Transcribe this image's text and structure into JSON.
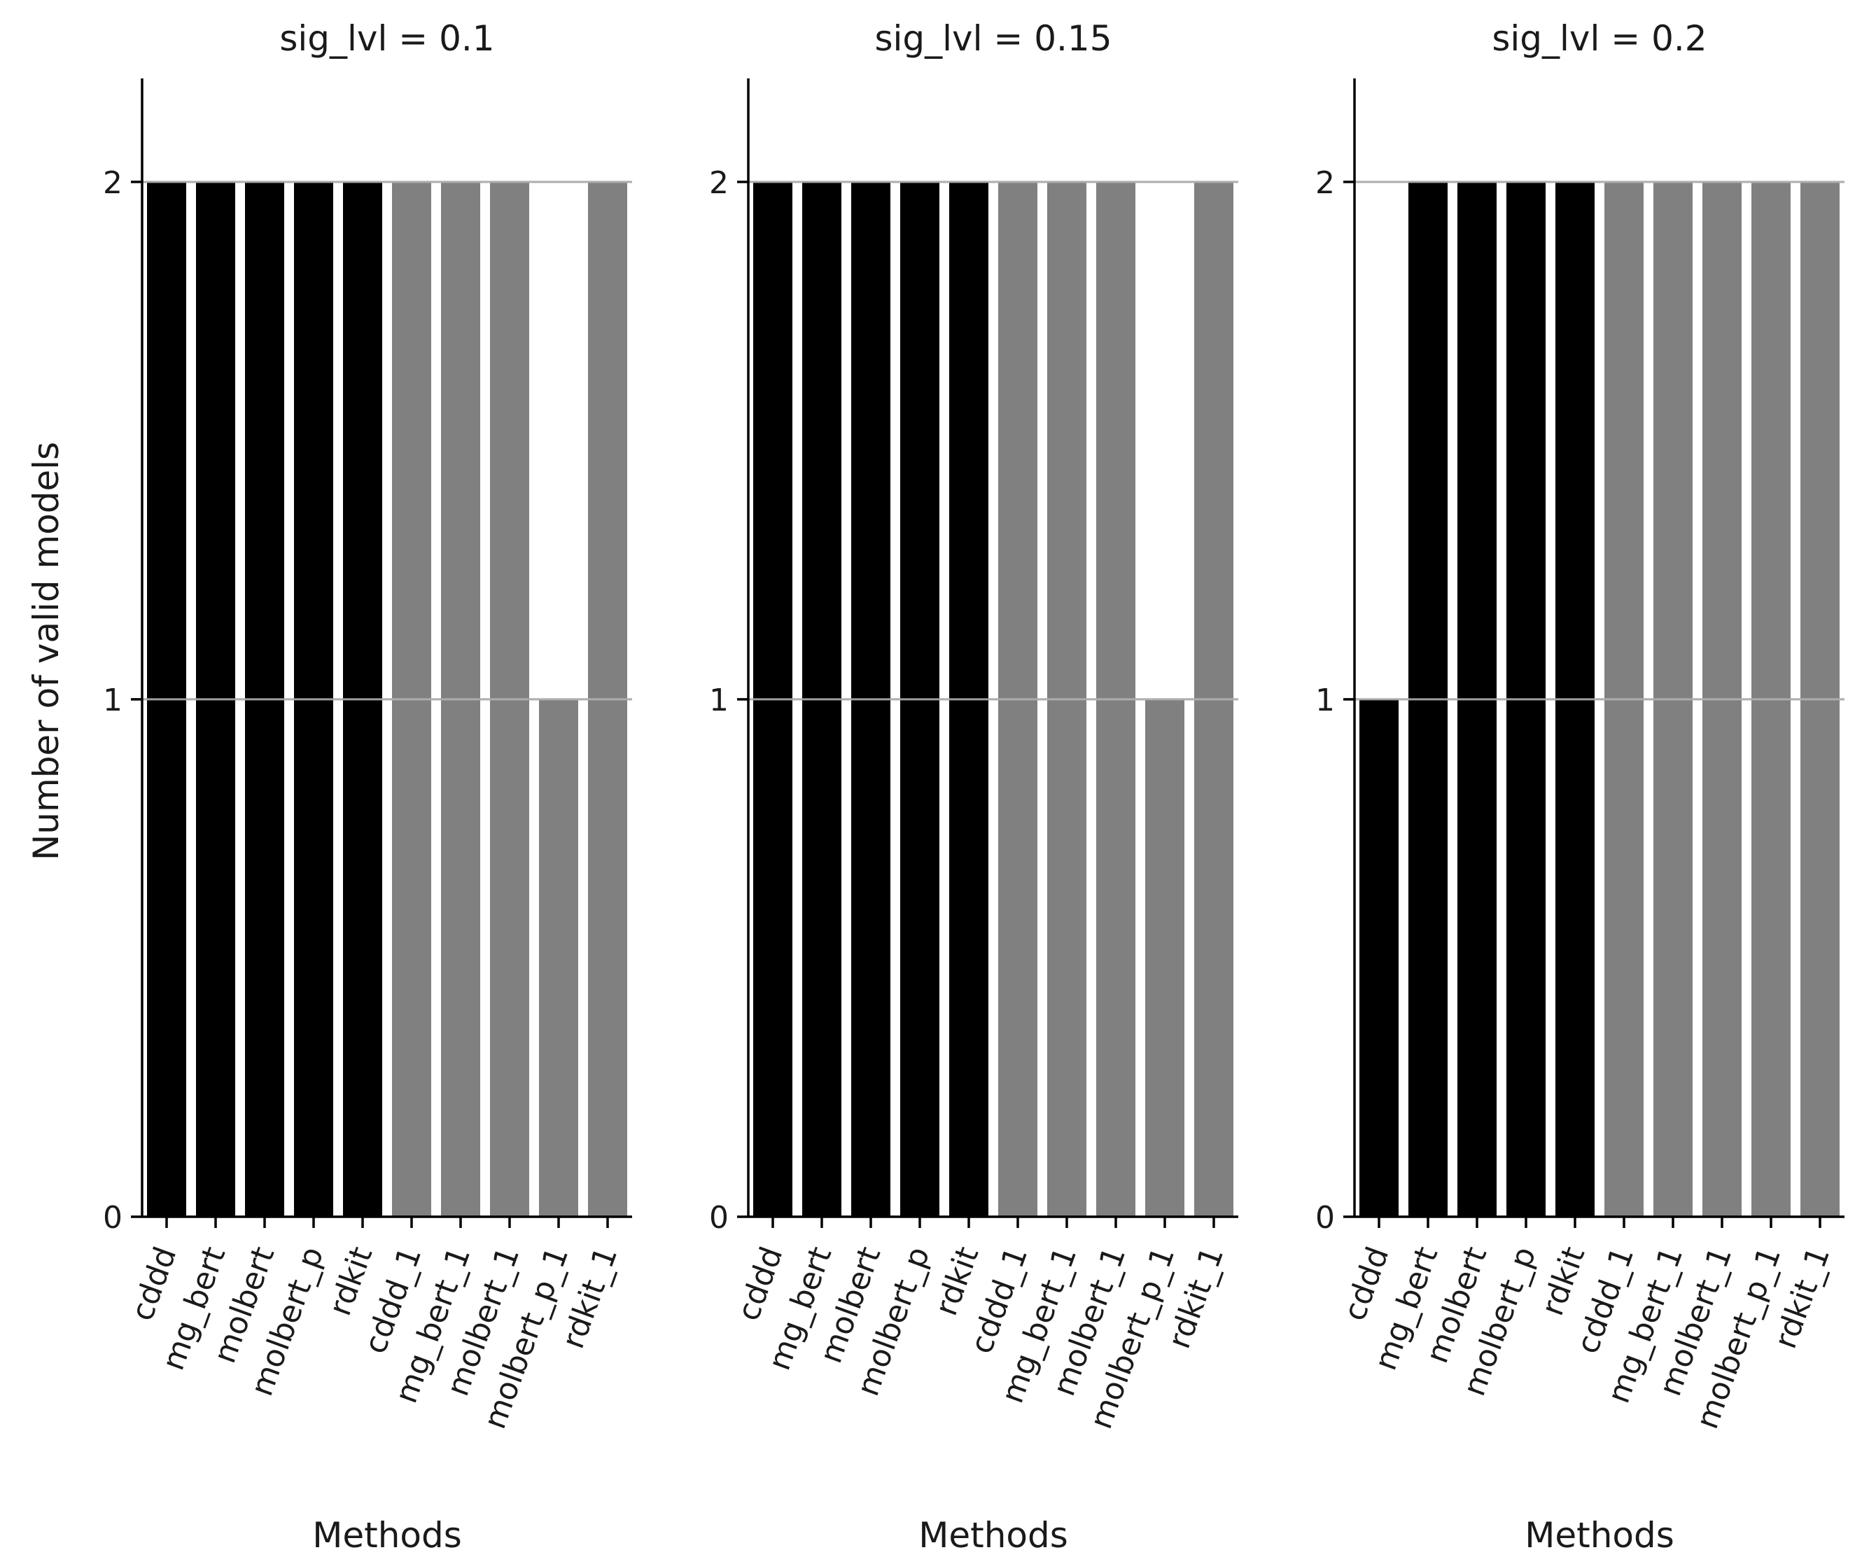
{
  "chart_data": {
    "type": "bar",
    "ylabel": "Number of valid models",
    "xlabel": "Methods",
    "ylim": [
      0,
      2.2
    ],
    "yticks": [
      "0",
      "1",
      "2"
    ],
    "grid": "horizontal",
    "categories": [
      "cddd",
      "mg_bert",
      "molbert",
      "molbert_p",
      "rdkit",
      "cddd_1",
      "mg_bert_1",
      "molbert_1",
      "molbert_p_1",
      "rdkit_1"
    ],
    "bar_colors": [
      "#000000",
      "#000000",
      "#000000",
      "#000000",
      "#000000",
      "#808080",
      "#808080",
      "#808080",
      "#808080",
      "#808080"
    ],
    "panels": [
      {
        "title": "sig_lvl = 0.1",
        "values": [
          2,
          2,
          2,
          2,
          2,
          2,
          2,
          2,
          1,
          2
        ]
      },
      {
        "title": "sig_lvl = 0.15",
        "values": [
          2,
          2,
          2,
          2,
          2,
          2,
          2,
          2,
          1,
          2
        ]
      },
      {
        "title": "sig_lvl = 0.2",
        "values": [
          1,
          2,
          2,
          2,
          2,
          2,
          2,
          2,
          2,
          2
        ]
      }
    ]
  },
  "colors": {
    "grid": "#b0b0b0",
    "axis": "#000000"
  }
}
